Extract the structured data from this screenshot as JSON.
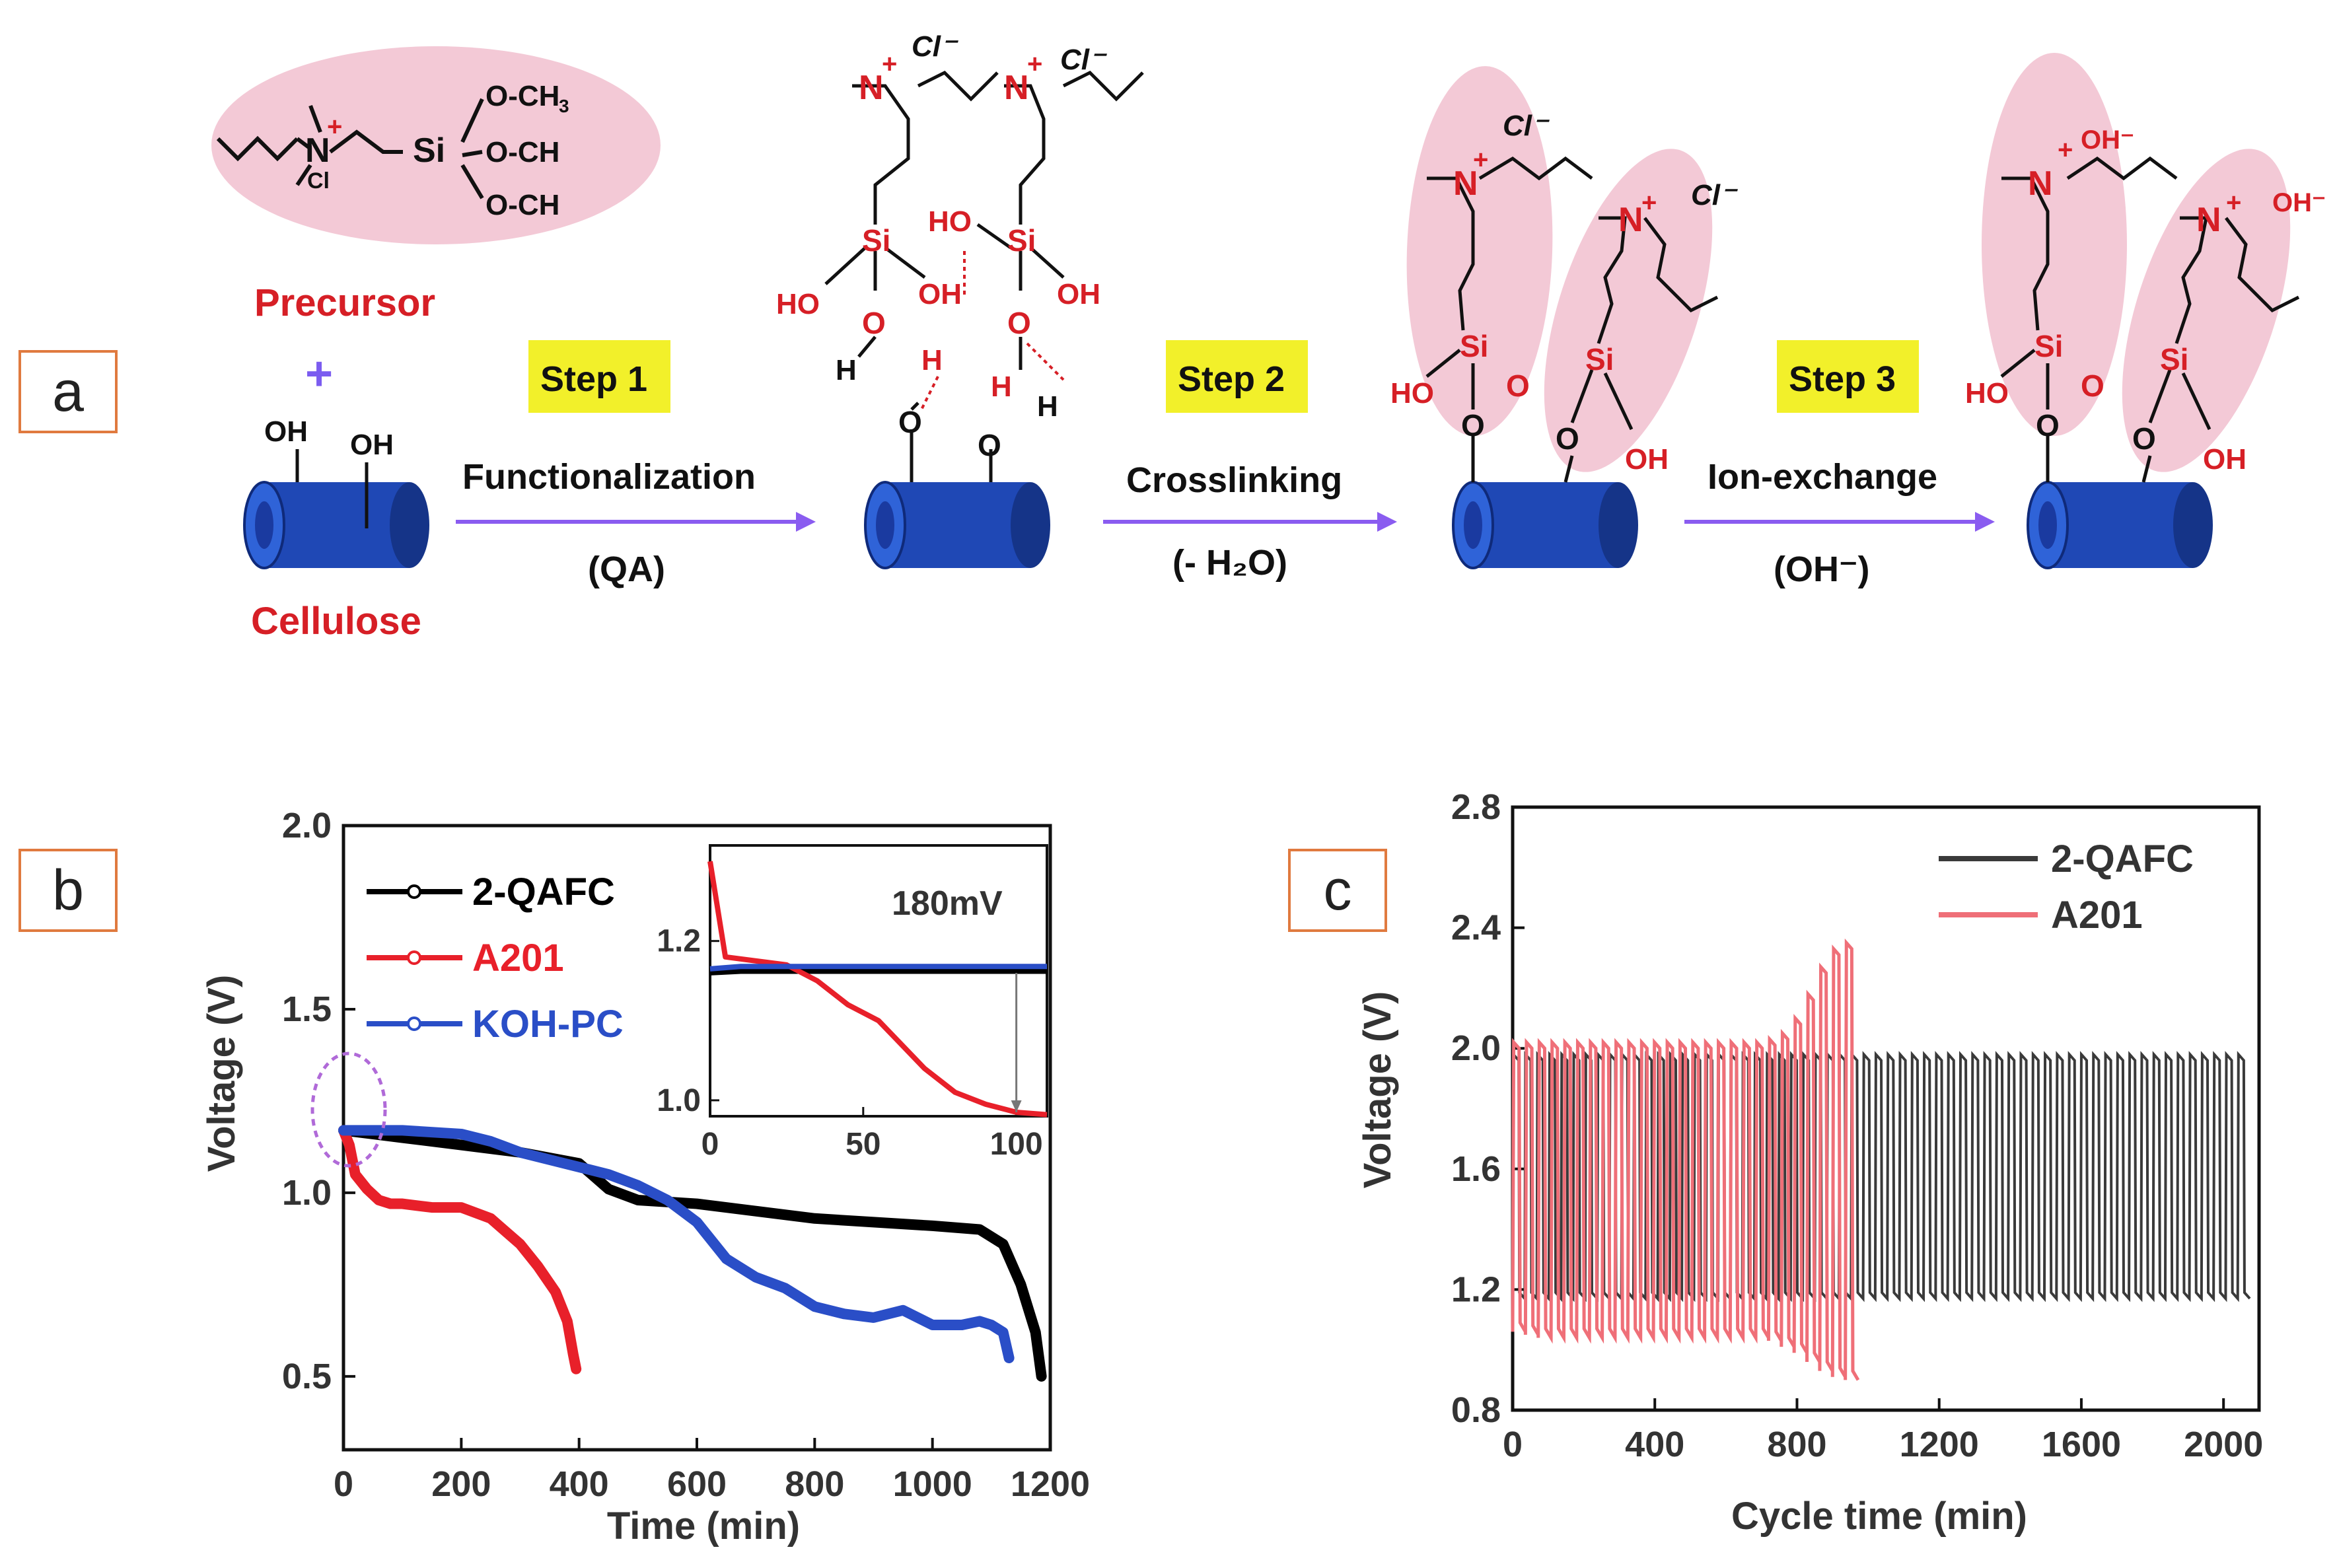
{
  "panel_a": {
    "label": "a",
    "precursor": {
      "name": "Precursor",
      "plus": "+",
      "och3_1": "O-CH",
      "och3_2": "O-CH",
      "och3_3": "O-CH",
      "sub3": "3",
      "si": "Si",
      "n": "N",
      "charge": "+",
      "cl": "Cl",
      "cl_sup": "-"
    },
    "cellulose": {
      "name": "Cellulose",
      "oh1": "OH",
      "oh2": "OH"
    },
    "steps": [
      {
        "badge": "Step 1",
        "title": "Functionalization",
        "sub": "(QA)"
      },
      {
        "badge": "Step 2",
        "title": "Crosslinking",
        "sub": "(- H₂O)"
      },
      {
        "badge": "Step 3",
        "title": "Ion-exchange",
        "sub": "(OH⁻)"
      }
    ],
    "atoms": {
      "si": "Si",
      "o": "O",
      "h": "H",
      "oh": "OH",
      "ho": "HO",
      "n": "N",
      "plus": "+",
      "cl": "Cl",
      "cl_minus": "Cl⁻",
      "oh_minus": "OH⁻"
    },
    "colors": {
      "ellipse": "#f3c9d6",
      "red": "#d61f26",
      "badge": "#f2f02a",
      "arrow": "#8a5cf0",
      "cyl_dark": "#1a3aa0",
      "cyl_light": "#2f63d8"
    }
  },
  "chart_data": [
    {
      "type": "line",
      "panel_label": "b",
      "title": "",
      "xlabel": "Time (min)",
      "ylabel": "Voltage (V)",
      "xlim": [
        0,
        1200
      ],
      "ylim": [
        0.3,
        2.0
      ],
      "xticks": [
        0,
        200,
        400,
        600,
        800,
        1000,
        1200
      ],
      "yticks": [
        0.5,
        1.0,
        1.5,
        2.0
      ],
      "xtick_labels": [
        "0",
        "200",
        "400",
        "600",
        "800",
        "1000",
        "1200"
      ],
      "ytick_labels": [
        "0.5",
        "1.0",
        "1.5",
        "2.0"
      ],
      "series": [
        {
          "name": "2-QAFC",
          "color": "#000000",
          "x": [
            0,
            50,
            100,
            200,
            300,
            400,
            450,
            500,
            600,
            700,
            800,
            900,
            1000,
            1080,
            1120,
            1150,
            1175,
            1185
          ],
          "y": [
            1.17,
            1.16,
            1.15,
            1.13,
            1.11,
            1.08,
            1.01,
            0.98,
            0.97,
            0.95,
            0.93,
            0.92,
            0.91,
            0.9,
            0.86,
            0.75,
            0.62,
            0.5
          ]
        },
        {
          "name": "A201",
          "color": "#e8202a",
          "x": [
            0,
            10,
            20,
            40,
            60,
            80,
            100,
            150,
            200,
            250,
            300,
            330,
            360,
            380,
            390,
            395
          ],
          "y": [
            1.17,
            1.13,
            1.05,
            1.01,
            0.98,
            0.97,
            0.97,
            0.96,
            0.96,
            0.93,
            0.86,
            0.8,
            0.73,
            0.65,
            0.56,
            0.52
          ]
        },
        {
          "name": "KOH-PC",
          "color": "#2a4ec7",
          "x": [
            0,
            100,
            200,
            250,
            300,
            350,
            400,
            450,
            500,
            550,
            600,
            650,
            700,
            750,
            800,
            850,
            900,
            950,
            1000,
            1050,
            1080,
            1100,
            1120,
            1130
          ],
          "y": [
            1.17,
            1.17,
            1.16,
            1.14,
            1.11,
            1.09,
            1.07,
            1.05,
            1.02,
            0.98,
            0.92,
            0.82,
            0.77,
            0.74,
            0.69,
            0.67,
            0.66,
            0.68,
            0.64,
            0.64,
            0.65,
            0.64,
            0.62,
            0.55
          ]
        }
      ],
      "inset": {
        "annotation": "180mV",
        "xlim": [
          0,
          110
        ],
        "ylim": [
          0.98,
          1.32
        ],
        "xticks": [
          0,
          50,
          100
        ],
        "yticks": [
          1.0,
          1.2
        ],
        "xtick_labels": [
          "0",
          "50",
          "100"
        ],
        "ytick_labels": [
          "1.0",
          "1.2"
        ],
        "series": [
          {
            "name": "2-QAFC",
            "color": "#000000",
            "x": [
              0,
              10,
              30,
              60,
              90,
              110
            ],
            "y": [
              1.16,
              1.162,
              1.162,
              1.162,
              1.162,
              1.162
            ]
          },
          {
            "name": "A201",
            "color": "#e8202a",
            "x": [
              0,
              5,
              15,
              25,
              35,
              45,
              55,
              60,
              70,
              80,
              90,
              100,
              110
            ],
            "y": [
              1.3,
              1.18,
              1.175,
              1.17,
              1.15,
              1.12,
              1.1,
              1.08,
              1.04,
              1.01,
              0.995,
              0.985,
              0.982
            ]
          },
          {
            "name": "KOH-PC",
            "color": "#2a4ec7",
            "x": [
              0,
              10,
              30,
              60,
              90,
              110
            ],
            "y": [
              1.165,
              1.168,
              1.168,
              1.168,
              1.168,
              1.168
            ]
          }
        ]
      }
    },
    {
      "type": "line",
      "panel_label": "c",
      "title": "",
      "xlabel": "Cycle time (min)",
      "ylabel": "Voltage (V)",
      "xlim": [
        0,
        2100
      ],
      "ylim": [
        0.8,
        2.8
      ],
      "xticks": [
        0,
        400,
        800,
        1200,
        1600,
        2000
      ],
      "yticks": [
        0.8,
        1.2,
        1.6,
        2.0,
        2.4,
        2.8
      ],
      "xtick_labels": [
        "0",
        "400",
        "800",
        "1200",
        "1600",
        "2000"
      ],
      "ytick_labels": [
        "0.8",
        "1.2",
        "1.6",
        "2.0",
        "2.4",
        "2.8"
      ],
      "series": [
        {
          "name": "2-QAFC",
          "color": "#3a3a3a",
          "x_range": [
            0,
            2080
          ],
          "period_min": 34,
          "charge_v": 1.98,
          "discharge_v": 1.17
        },
        {
          "name": "A201",
          "color": "#ef6f78",
          "x_range": [
            0,
            960
          ],
          "period_min": 36,
          "charge_v": [
            2.02,
            2.02,
            2.02,
            2.02,
            2.02,
            2.02,
            2.02,
            2.02,
            2.02,
            2.02,
            2.02,
            2.02,
            2.02,
            2.02,
            2.02,
            2.02,
            2.02,
            2.02,
            2.02,
            2.02,
            2.03,
            2.05,
            2.1,
            2.18,
            2.27,
            2.33,
            2.35
          ],
          "discharge_v": [
            1.06,
            1.05,
            1.04,
            1.04,
            1.04,
            1.04,
            1.04,
            1.04,
            1.04,
            1.04,
            1.04,
            1.04,
            1.04,
            1.04,
            1.04,
            1.04,
            1.04,
            1.04,
            1.04,
            1.04,
            1.03,
            1.01,
            0.99,
            0.96,
            0.93,
            0.91,
            0.9
          ]
        }
      ]
    }
  ]
}
